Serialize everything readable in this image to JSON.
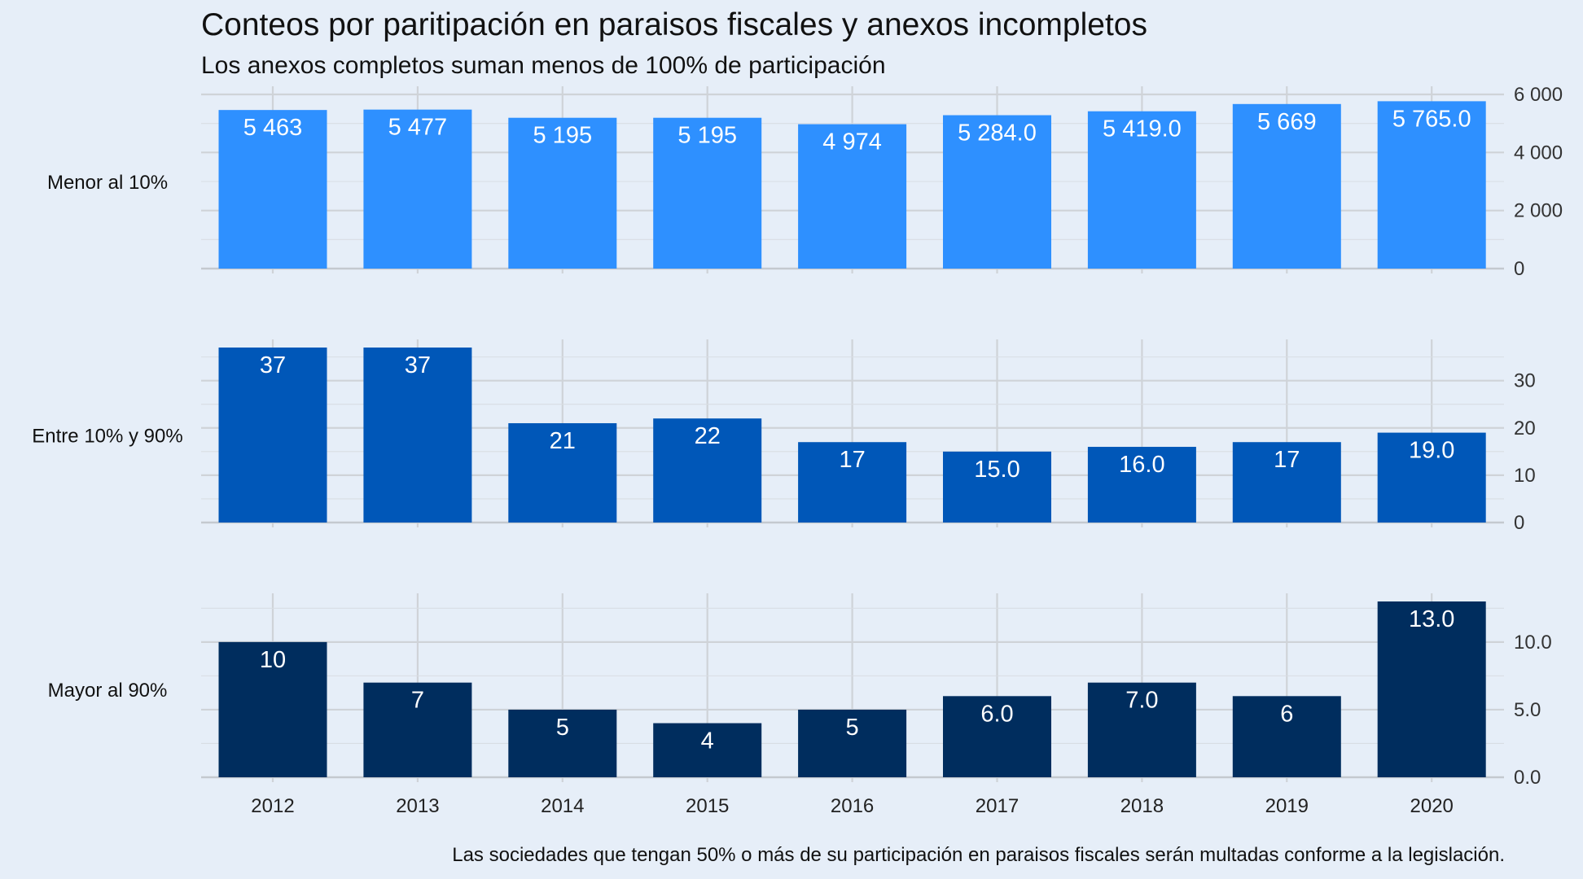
{
  "chart_data": {
    "type": "bar",
    "title": "Conteos por paritipación en paraisos fiscales y anexos incompletos",
    "subtitle": "Los anexos completos suman menos de 100% de participación",
    "caption": "Las sociedades que tengan 50% o más de su participación en paraisos fiscales serán multadas conforme a la legislación.",
    "categories": [
      "2012",
      "2013",
      "2014",
      "2015",
      "2016",
      "2017",
      "2018",
      "2019",
      "2020"
    ],
    "grid": true,
    "panels": [
      {
        "name": "Menor al 10%",
        "color": "#2e90ff",
        "values": [
          5463,
          5477,
          5195,
          5195,
          4974,
          5284,
          5419,
          5669,
          5765
        ],
        "labels": [
          "5 463",
          "5 477",
          "5 195",
          "5 195",
          "4 974",
          "5 284.0",
          "5 419.0",
          "5 669",
          "5 765.0"
        ],
        "ylim": [
          0,
          6000
        ],
        "yticks": [
          0,
          2000,
          4000,
          6000
        ],
        "ytick_labels": [
          "0",
          "2 000",
          "4 000",
          "6 000"
        ]
      },
      {
        "name": "Entre 10% y 90%",
        "color": "#0057b8",
        "values": [
          37,
          37,
          21,
          22,
          17,
          15,
          16,
          17,
          19
        ],
        "labels": [
          "37",
          "37",
          "21",
          "22",
          "17",
          "15.0",
          "16.0",
          "17",
          "19.0"
        ],
        "ylim": [
          0,
          37
        ],
        "yticks": [
          0,
          10,
          20,
          30
        ],
        "ytick_labels": [
          "0",
          "10",
          "20",
          "30"
        ]
      },
      {
        "name": "Mayor al 90%",
        "color": "#002d5e",
        "values": [
          10,
          7,
          5,
          4,
          5,
          6,
          7,
          6,
          13
        ],
        "labels": [
          "10",
          "7",
          "5",
          "4",
          "5",
          "6.0",
          "7.0",
          "6",
          "13.0"
        ],
        "ylim": [
          0,
          13
        ],
        "yticks": [
          0,
          5,
          10
        ],
        "ytick_labels": [
          "0.0",
          "5.0",
          "10.0"
        ]
      }
    ]
  }
}
